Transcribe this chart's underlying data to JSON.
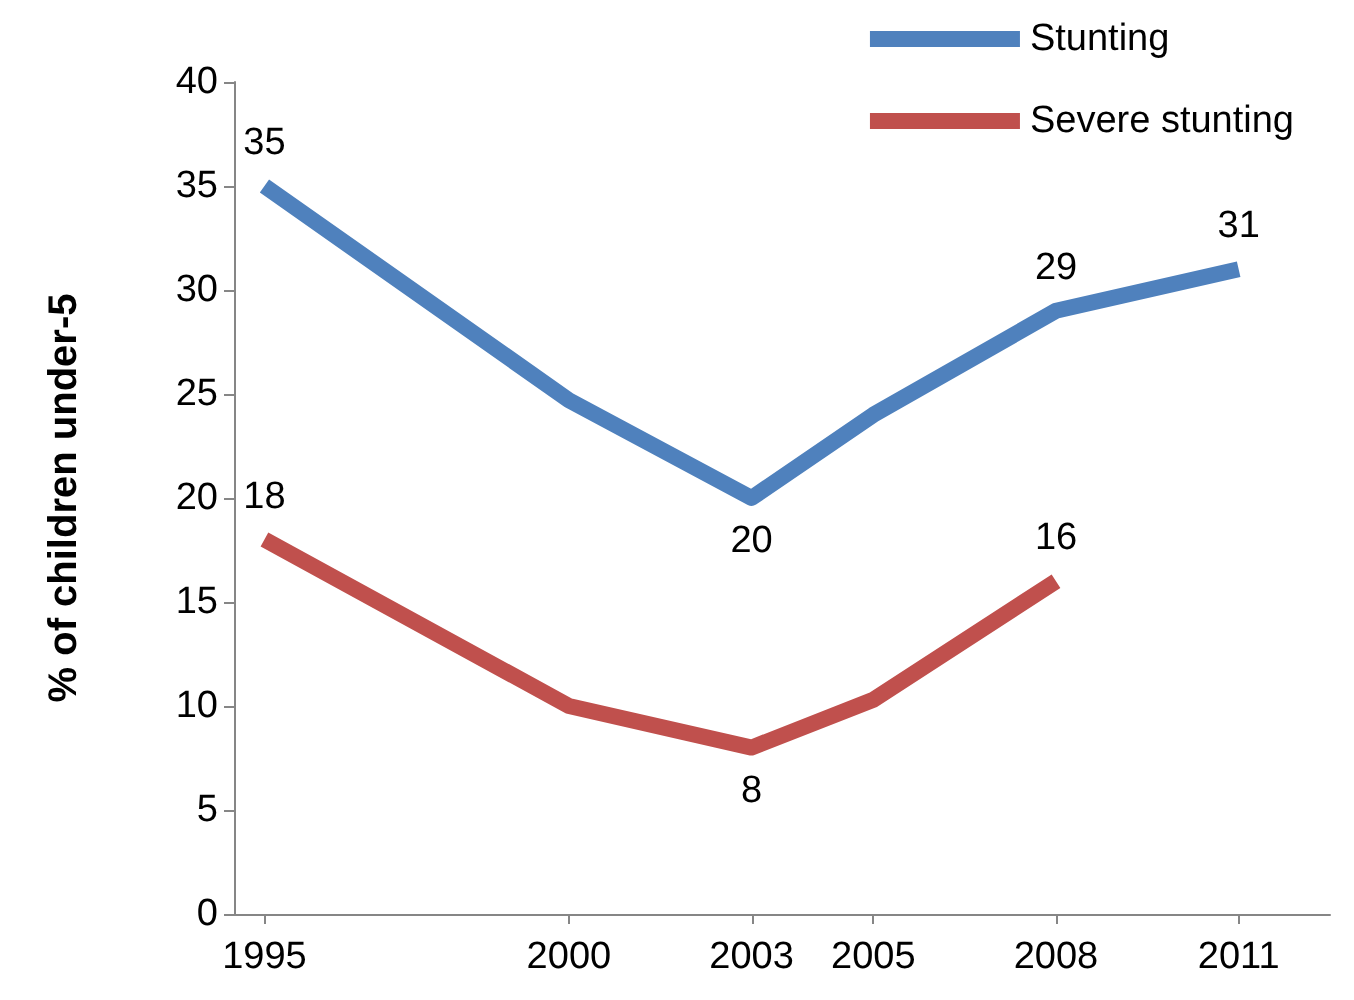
{
  "chart_data": {
    "type": "line",
    "ylabel": "% of children under-5",
    "x": [
      1995,
      2000,
      2003,
      2005,
      2008,
      2011
    ],
    "xlim": [
      1994.5,
      2012.5
    ],
    "xticks": [
      1995,
      2000,
      2003,
      2005,
      2008,
      2011
    ],
    "ylim": [
      0,
      40
    ],
    "yticks": [
      0,
      5,
      10,
      15,
      20,
      25,
      30,
      35,
      40
    ],
    "series": [
      {
        "name": "Stunting",
        "color": "#4f81bd",
        "values": [
          35,
          24.7,
          20,
          24,
          29,
          31
        ],
        "value_labels": [
          "35",
          null,
          "20",
          null,
          "29",
          "31"
        ]
      },
      {
        "name": "Severe stunting",
        "color": "#c0504d",
        "values": [
          18,
          10,
          8,
          10.3,
          16,
          null
        ],
        "value_labels": [
          "18",
          null,
          "8",
          null,
          "16",
          null
        ]
      }
    ],
    "grid": false,
    "legend": "top right",
    "marker": "none",
    "line_style": "solid"
  }
}
